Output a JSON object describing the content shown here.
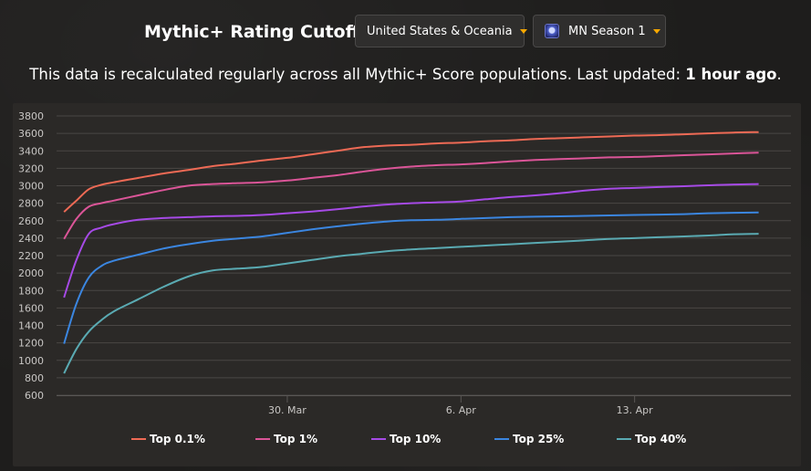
{
  "header": {
    "title": "Mythic+ Rating Cutoffs",
    "region_select": "United States & Oceania",
    "season_select": "MN Season 1"
  },
  "subtitle": {
    "text": "This data is recalculated regularly across all Mythic+ Score populations. Last updated: ",
    "emphasis": "1 hour ago",
    "end": "."
  },
  "icons": {
    "region_caret": "caret-down-icon",
    "season": "season-badge-icon"
  },
  "chart_data": {
    "type": "line",
    "title": "",
    "xlabel": "",
    "ylabel": "",
    "ylim": [
      600,
      3800
    ],
    "yticks": [
      600,
      800,
      1000,
      1200,
      1400,
      1600,
      1800,
      2000,
      2200,
      2400,
      2600,
      2800,
      3000,
      3200,
      3400,
      3600,
      3800
    ],
    "x_labels": [
      {
        "day": 9,
        "label": "30. Mar"
      },
      {
        "day": 16,
        "label": "6. Apr"
      },
      {
        "day": 23,
        "label": "13. Apr"
      }
    ],
    "x": [
      0,
      0.5,
      1,
      1.5,
      2,
      3,
      4,
      5,
      6,
      7,
      8,
      9,
      10,
      11,
      12,
      13,
      14,
      15,
      16,
      17,
      18,
      19,
      20,
      21,
      22,
      23,
      24,
      25,
      26,
      27,
      28
    ],
    "x_range": [
      -0.3,
      29.3
    ],
    "legend_position": "bottom",
    "series": [
      {
        "name": "Top 0.1%",
        "color": "#ee6a55",
        "values": [
          2700,
          2830,
          2960,
          3010,
          3040,
          3090,
          3140,
          3180,
          3225,
          3255,
          3290,
          3320,
          3360,
          3400,
          3440,
          3460,
          3470,
          3485,
          3495,
          3510,
          3520,
          3535,
          3545,
          3555,
          3565,
          3575,
          3580,
          3590,
          3600,
          3610,
          3615
        ]
      },
      {
        "name": "Top 1%",
        "color": "#db5598",
        "values": [
          2390,
          2620,
          2760,
          2800,
          2830,
          2890,
          2950,
          3000,
          3020,
          3030,
          3040,
          3060,
          3090,
          3120,
          3160,
          3195,
          3220,
          3235,
          3245,
          3260,
          3280,
          3295,
          3305,
          3315,
          3325,
          3330,
          3340,
          3350,
          3360,
          3370,
          3380
        ]
      },
      {
        "name": "Top 10%",
        "color": "#a64ae6",
        "values": [
          1720,
          2150,
          2450,
          2520,
          2560,
          2610,
          2630,
          2640,
          2650,
          2655,
          2665,
          2685,
          2705,
          2730,
          2760,
          2785,
          2800,
          2810,
          2820,
          2845,
          2870,
          2890,
          2915,
          2945,
          2965,
          2975,
          2985,
          2995,
          3005,
          3015,
          3020
        ]
      },
      {
        "name": "Top 25%",
        "color": "#3b86e0",
        "values": [
          1190,
          1650,
          1950,
          2080,
          2140,
          2210,
          2280,
          2330,
          2370,
          2395,
          2420,
          2460,
          2500,
          2535,
          2565,
          2590,
          2605,
          2610,
          2620,
          2630,
          2640,
          2645,
          2650,
          2655,
          2660,
          2665,
          2670,
          2675,
          2685,
          2690,
          2695
        ]
      },
      {
        "name": "Top 40%",
        "color": "#5aaab2",
        "values": [
          850,
          1130,
          1330,
          1460,
          1560,
          1700,
          1840,
          1960,
          2030,
          2050,
          2070,
          2110,
          2150,
          2190,
          2220,
          2250,
          2270,
          2285,
          2300,
          2315,
          2330,
          2345,
          2360,
          2375,
          2390,
          2400,
          2410,
          2420,
          2430,
          2445,
          2450
        ]
      }
    ]
  }
}
